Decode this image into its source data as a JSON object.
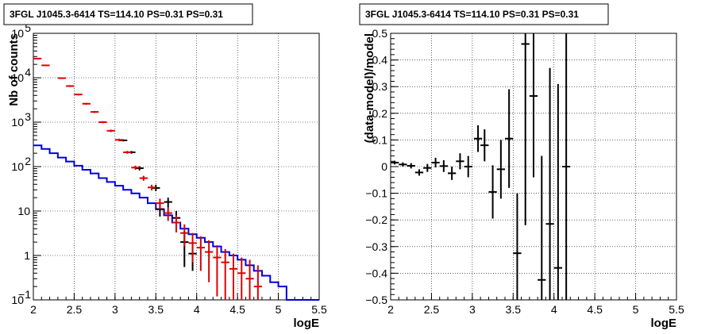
{
  "chart_data": [
    {
      "type": "line",
      "title": "3FGL J1045.3-6414 TS=114.10 PS=0.31 PS=0.31",
      "xlabel": "logE",
      "ylabel": "Nb of counts",
      "xlim": [
        2,
        5.5
      ],
      "ylim": [
        0.1,
        100000
      ],
      "yscale": "log",
      "grid": true,
      "x_ticks": [
        "2",
        "2.5",
        "3",
        "3.5",
        "4",
        "4.5",
        "5",
        "5.5"
      ],
      "y_ticks": [
        {
          "value": 0.1,
          "base": "10",
          "exp": "−1"
        },
        {
          "value": 1,
          "base": "1",
          "exp": ""
        },
        {
          "value": 10,
          "base": "10",
          "exp": ""
        },
        {
          "value": 100,
          "base": "10",
          "exp": "2"
        },
        {
          "value": 1000,
          "base": "10",
          "exp": "3"
        },
        {
          "value": 10000,
          "base": "10",
          "exp": "4"
        },
        {
          "value": 100000,
          "base": "10",
          "exp": "5"
        }
      ],
      "bin_edges": [
        2.0,
        2.1,
        2.2,
        2.3,
        2.4,
        2.5,
        2.6,
        2.7,
        2.8,
        2.9,
        3.0,
        3.1,
        3.2,
        3.3,
        3.4,
        3.5,
        3.6,
        3.7,
        3.8,
        3.9,
        4.0,
        4.1,
        4.2,
        4.3,
        4.4,
        4.5,
        4.6,
        4.7,
        4.8,
        4.9,
        5.0,
        5.1,
        5.2,
        5.3,
        5.4,
        5.5
      ],
      "series": [
        {
          "kind": "step",
          "color": "#0000dd",
          "values": [
            300,
            250,
            200,
            160,
            130,
            105,
            85,
            70,
            55,
            45,
            37,
            30,
            25,
            20,
            15,
            11,
            8,
            5.5,
            4,
            3,
            2.5,
            2,
            1.6,
            1.2,
            1,
            0.8,
            0.6,
            0.45,
            0.35,
            0.25,
            0.2,
            0.1,
            0.1,
            0.1,
            0.1
          ]
        },
        {
          "kind": "errorbar",
          "color": "#000000",
          "points": [
            {
              "x": 3.1,
              "y": 390,
              "lo": 370,
              "hi": 410
            },
            {
              "x": 3.2,
              "y": 210,
              "lo": 195,
              "hi": 225
            },
            {
              "x": 3.3,
              "y": 92,
              "lo": 82,
              "hi": 102
            },
            {
              "x": 3.5,
              "y": 33,
              "lo": 28,
              "hi": 39
            },
            {
              "x": 3.55,
              "y": 11,
              "lo": 7.5,
              "hi": 15
            },
            {
              "x": 3.65,
              "y": 16,
              "lo": 12,
              "hi": 20
            },
            {
              "x": 3.75,
              "y": 7,
              "lo": 4.5,
              "hi": 10
            },
            {
              "x": 3.85,
              "y": 2,
              "lo": 0.55,
              "hi": 3.5
            },
            {
              "x": 3.95,
              "y": 1.1,
              "lo": 0.45,
              "hi": 2
            }
          ]
        },
        {
          "kind": "errorbar",
          "color": "#dd0000",
          "points": [
            {
              "x": 2.05,
              "y": 27000,
              "lo": 26000,
              "hi": 28000
            },
            {
              "x": 2.15,
              "y": 19000,
              "lo": 18300,
              "hi": 19700
            },
            {
              "x": 2.35,
              "y": 9800,
              "lo": 9400,
              "hi": 10200
            },
            {
              "x": 2.45,
              "y": 6500,
              "lo": 6200,
              "hi": 6800
            },
            {
              "x": 2.55,
              "y": 4200,
              "lo": 4000,
              "hi": 4400
            },
            {
              "x": 2.65,
              "y": 2600,
              "lo": 2480,
              "hi": 2720
            },
            {
              "x": 2.75,
              "y": 1700,
              "lo": 1610,
              "hi": 1790
            },
            {
              "x": 2.85,
              "y": 1000,
              "lo": 945,
              "hi": 1055
            },
            {
              "x": 2.95,
              "y": 640,
              "lo": 600,
              "hi": 680
            },
            {
              "x": 3.05,
              "y": 400,
              "lo": 375,
              "hi": 425
            },
            {
              "x": 3.15,
              "y": 210,
              "lo": 195,
              "hi": 225
            },
            {
              "x": 3.25,
              "y": 95,
              "lo": 85,
              "hi": 105
            },
            {
              "x": 3.35,
              "y": 55,
              "lo": 48,
              "hi": 62
            },
            {
              "x": 3.45,
              "y": 34,
              "lo": 29,
              "hi": 39
            },
            {
              "x": 3.55,
              "y": 15,
              "lo": 11,
              "hi": 19
            },
            {
              "x": 3.65,
              "y": 9,
              "lo": 6,
              "hi": 12
            },
            {
              "x": 3.75,
              "y": 5.5,
              "lo": 3.3,
              "hi": 8
            },
            {
              "x": 3.85,
              "y": 3.2,
              "lo": 1.6,
              "hi": 5
            },
            {
              "x": 3.95,
              "y": 1.9,
              "lo": 0.7,
              "hi": 3.2
            },
            {
              "x": 4.05,
              "y": 1.5,
              "lo": 0.45,
              "hi": 2.7
            },
            {
              "x": 4.15,
              "y": 1.2,
              "lo": 0.25,
              "hi": 2.2
            },
            {
              "x": 4.25,
              "y": 0.9,
              "lo": 0.12,
              "hi": 1.7
            },
            {
              "x": 4.35,
              "y": 0.7,
              "lo": 0.1,
              "hi": 1.4
            },
            {
              "x": 4.45,
              "y": 0.5,
              "lo": 0.1,
              "hi": 1.1
            },
            {
              "x": 4.55,
              "y": 0.4,
              "lo": 0.1,
              "hi": 0.9
            },
            {
              "x": 4.65,
              "y": 0.3,
              "lo": 0.1,
              "hi": 0.8
            },
            {
              "x": 4.75,
              "y": 0.2,
              "lo": 0.1,
              "hi": 0.6
            }
          ]
        }
      ]
    },
    {
      "type": "scatter",
      "title": "3FGL J1045.3-6414 TS=114.10 PS=0.31 PS=0.31",
      "xlabel": "logE",
      "ylabel": "(data-model)/model",
      "xlim": [
        2,
        5.5
      ],
      "ylim": [
        -0.5,
        0.5
      ],
      "grid": true,
      "x_ticks": [
        "2",
        "2.5",
        "3",
        "3.5",
        "4",
        "4.5",
        "5",
        "5.5"
      ],
      "y_ticks": [
        "−0.5",
        "−0.4",
        "−0.3",
        "−0.2",
        "−0.1",
        "0",
        "0.1",
        "0.2",
        "0.3",
        "0.4",
        "0.5"
      ],
      "series": [
        {
          "kind": "errorbar",
          "color": "#000000",
          "points": [
            {
              "x": 2.05,
              "y": 0.015,
              "lo": 0.008,
              "hi": 0.022,
              "xerr": 0.05
            },
            {
              "x": 2.15,
              "y": 0.008,
              "lo": 0.0,
              "hi": 0.016,
              "xerr": 0.05
            },
            {
              "x": 2.25,
              "y": 0.003,
              "lo": -0.007,
              "hi": 0.013,
              "xerr": 0.05
            },
            {
              "x": 2.35,
              "y": -0.022,
              "lo": -0.034,
              "hi": -0.01,
              "xerr": 0.05
            },
            {
              "x": 2.45,
              "y": -0.005,
              "lo": -0.02,
              "hi": 0.01,
              "xerr": 0.05
            },
            {
              "x": 2.55,
              "y": 0.015,
              "lo": -0.003,
              "hi": 0.033,
              "xerr": 0.05
            },
            {
              "x": 2.65,
              "y": 0.002,
              "lo": -0.02,
              "hi": 0.024,
              "xerr": 0.05
            },
            {
              "x": 2.75,
              "y": -0.025,
              "lo": -0.05,
              "hi": 0.0,
              "xerr": 0.05
            },
            {
              "x": 2.85,
              "y": 0.02,
              "lo": -0.01,
              "hi": 0.05,
              "xerr": 0.05
            },
            {
              "x": 2.95,
              "y": 0.0,
              "lo": -0.04,
              "hi": 0.04,
              "xerr": 0.05
            },
            {
              "x": 3.07,
              "y": 0.105,
              "lo": 0.055,
              "hi": 0.155,
              "xerr": 0.05
            },
            {
              "x": 3.15,
              "y": 0.08,
              "lo": 0.02,
              "hi": 0.14,
              "xerr": 0.05
            },
            {
              "x": 3.25,
              "y": -0.095,
              "lo": -0.195,
              "hi": 0.005,
              "xerr": 0.05
            },
            {
              "x": 3.35,
              "y": -0.01,
              "lo": -0.12,
              "hi": 0.1,
              "xerr": 0.05
            },
            {
              "x": 3.45,
              "y": 0.105,
              "lo": -0.08,
              "hi": 0.29,
              "xerr": 0.05
            },
            {
              "x": 3.55,
              "y": -0.325,
              "lo": -0.5,
              "hi": -0.1,
              "xerr": 0.05
            },
            {
              "x": 3.65,
              "y": 0.46,
              "lo": -0.22,
              "hi": 0.5,
              "xerr": 0.05
            },
            {
              "x": 3.75,
              "y": 0.265,
              "lo": -0.04,
              "hi": 0.5,
              "xerr": 0.05
            },
            {
              "x": 3.85,
              "y": -0.425,
              "lo": -0.5,
              "hi": 0.04,
              "xerr": 0.05
            },
            {
              "x": 3.95,
              "y": -0.215,
              "lo": -0.5,
              "hi": 0.37,
              "xerr": 0.05
            },
            {
              "x": 4.05,
              "y": -0.38,
              "lo": -0.5,
              "hi": 0.31,
              "xerr": 0.05
            },
            {
              "x": 4.15,
              "y": 0.0,
              "lo": -0.5,
              "hi": 0.5,
              "xerr": 0.05
            }
          ]
        }
      ]
    }
  ]
}
